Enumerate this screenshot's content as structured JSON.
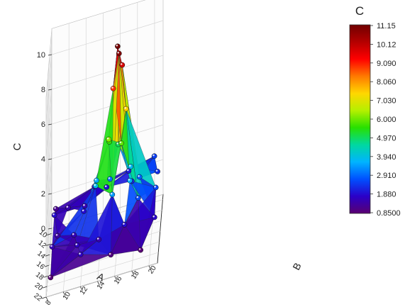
{
  "chart_data": {
    "type": "surface3d",
    "title": "",
    "axes": {
      "x": {
        "label": "A",
        "ticks": [
          "10",
          "12",
          "14",
          "16",
          "18",
          "20",
          "22"
        ],
        "range": [
          9,
          22
        ]
      },
      "y": {
        "label": "B",
        "ticks": [
          "8",
          "10",
          "12",
          "14",
          "16",
          "18",
          "20"
        ],
        "range": [
          8,
          21
        ]
      },
      "z": {
        "label": "C",
        "ticks": [
          "0",
          "2",
          "4",
          "6",
          "8",
          "10"
        ],
        "range": [
          0,
          11.5
        ]
      }
    },
    "colorbar": {
      "title": "C",
      "tick_labels": [
        "11.15",
        "10.12",
        "9.090",
        "8.060",
        "7.030",
        "6.000",
        "4.970",
        "3.940",
        "2.910",
        "1.880",
        "0.8500"
      ],
      "min": 0.85,
      "max": 11.15,
      "colors": [
        "#5a0070",
        "#2a00c8",
        "#0050ff",
        "#00b4ff",
        "#00d8a0",
        "#28e000",
        "#b4f000",
        "#ffd700",
        "#ff7a00",
        "#ff0000",
        "#b40000",
        "#700000"
      ]
    },
    "grid": true,
    "series": [
      {
        "points": [
          {
            "x": 9.5,
            "y": 8.5,
            "z": 1.2
          },
          {
            "x": 11,
            "y": 10,
            "z": 1.5
          },
          {
            "x": 13,
            "y": 8.5,
            "z": 1.9
          },
          {
            "x": 15.5,
            "y": 9,
            "z": 1.4
          },
          {
            "x": 18,
            "y": 8.5,
            "z": 1.6
          },
          {
            "x": 21.5,
            "y": 8.5,
            "z": 0.9
          },
          {
            "x": 21.5,
            "y": 12,
            "z": 1.7
          },
          {
            "x": 21,
            "y": 15.5,
            "z": 1.0
          },
          {
            "x": 21.5,
            "y": 19,
            "z": 0.9
          },
          {
            "x": 19,
            "y": 20.5,
            "z": 1.8
          },
          {
            "x": 16,
            "y": 20.5,
            "z": 2.6
          },
          {
            "x": 12,
            "y": 20.5,
            "z": 2.3
          },
          {
            "x": 9.5,
            "y": 20,
            "z": 2.5
          },
          {
            "x": 9.5,
            "y": 17,
            "z": 2.1
          },
          {
            "x": 9.5,
            "y": 13,
            "z": 1.8
          },
          {
            "x": 12,
            "y": 12,
            "z": 1.6
          },
          {
            "x": 14,
            "y": 12,
            "z": 1.9
          },
          {
            "x": 17,
            "y": 11,
            "z": 1.6
          },
          {
            "x": 19.5,
            "y": 11.5,
            "z": 1.7
          },
          {
            "x": 19,
            "y": 14,
            "z": 1.5
          },
          {
            "x": 19,
            "y": 17,
            "z": 1.9
          },
          {
            "x": 17,
            "y": 18.5,
            "z": 2.6
          },
          {
            "x": 14,
            "y": 18.5,
            "z": 2.9
          },
          {
            "x": 12,
            "y": 17.5,
            "z": 2.2
          },
          {
            "x": 11,
            "y": 14.5,
            "z": 2.0
          },
          {
            "x": 13,
            "y": 15,
            "z": 3.0
          },
          {
            "x": 14.5,
            "y": 13.5,
            "z": 3.6
          },
          {
            "x": 16.5,
            "y": 13.5,
            "z": 3.9
          },
          {
            "x": 17.5,
            "y": 15.5,
            "z": 3.4
          },
          {
            "x": 16.5,
            "y": 17.5,
            "z": 3.6
          },
          {
            "x": 14.5,
            "y": 17.5,
            "z": 3.8
          },
          {
            "x": 13.5,
            "y": 16,
            "z": 5.0
          },
          {
            "x": 14.5,
            "y": 15,
            "z": 5.6
          },
          {
            "x": 16,
            "y": 15,
            "z": 6.2
          },
          {
            "x": 16.5,
            "y": 16.5,
            "z": 5.9
          },
          {
            "x": 15.5,
            "y": 17,
            "z": 7.5
          },
          {
            "x": 14.5,
            "y": 16.5,
            "z": 9.8
          },
          {
            "x": 15.5,
            "y": 15.5,
            "z": 8.9
          },
          {
            "x": 15,
            "y": 16,
            "z": 11.1
          },
          {
            "x": 15.8,
            "y": 16.2,
            "z": 10.9
          }
        ]
      }
    ]
  }
}
